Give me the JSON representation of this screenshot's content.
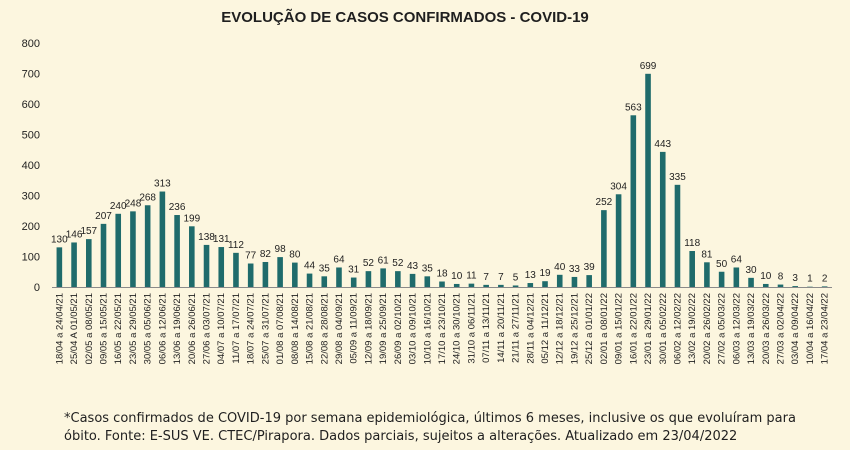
{
  "chart_data": {
    "type": "bar",
    "title": "EVOLUÇÃO DE CASOS CONFIRMADOS -  COVID-19",
    "xlabel": "",
    "ylabel": "",
    "ylim": [
      0,
      800
    ],
    "yticks": [
      0,
      100,
      200,
      300,
      400,
      500,
      600,
      700,
      800
    ],
    "grid": false,
    "legend": "none",
    "bar_color": "#1f6b6b",
    "categories": [
      "18/04 a 24/04/21",
      "25/04 A 01/05/21",
      "02/05 a 08/05/21",
      "09/05 a 15/05/21",
      "16/05 a 22/05/21",
      "23/05 a 29/05/21",
      "30/05 a 05/06/21",
      "06/06 a 12/06/21",
      "13/06 a 19/06/21",
      "20/06 a 26/06/21",
      "27/06 a 03/07/21",
      "04/07 a 10/07/21",
      "11/07 a 17/07/21",
      "18/07 a 24/07/21",
      "25/07 a 31/07/21",
      "01/08 a 07/08/21",
      "08/08 a 14/08/21",
      "15/08 a 21/08/21",
      "22/08 a 28/08/21",
      "29/08 a 04/09/21",
      "05/09 a 11/09/21",
      "12/09 a 18/09/21",
      "19/09 a 25/09/21",
      "26/09 a 02/10/21",
      "03/10 a 09/10/21",
      "10/10 a 16/10/21",
      "17/10 a 23/10/21",
      "24/10 a 30/10/21",
      "31/10 a 06/11/21",
      "07/11 a 13/11/21",
      "14/11 a 20/11/21",
      "21/11 a 27/11/21",
      "28/11 a 04/12/21",
      "05/12 a 11/12/21",
      "12/12 a 18/12/21",
      "19/12 a 25/12/21",
      "25/12 a 01/01/22",
      "02/01 a 08/01/22",
      "09/01 a 15/01/22",
      "16/01 a 22/01/22",
      "23/01 a 29/01/22",
      "30/01 a 05/02/22",
      "06/02 a 12/02/22",
      "13/02 a 19/02/22",
      "20/02 a 26/02/22",
      "27/02 a 05/03/22",
      "06/03 a 12/03/22",
      "13/03 a 19/03/22",
      "20/03 a 26/03/22",
      "27/03 a 02/04/22",
      "03/04 a 09/04/22",
      "10/04 a 16/04/22",
      "17/04 a 23/04/22"
    ],
    "values": [
      130,
      146,
      157,
      207,
      240,
      248,
      268,
      313,
      236,
      199,
      138,
      131,
      112,
      77,
      82,
      98,
      80,
      44,
      35,
      64,
      31,
      52,
      61,
      52,
      43,
      35,
      18,
      10,
      11,
      7,
      7,
      5,
      13,
      19,
      40,
      33,
      39,
      252,
      304,
      563,
      699,
      443,
      335,
      118,
      81,
      50,
      64,
      30,
      10,
      8,
      3,
      1,
      2
    ]
  },
  "footnote": {
    "line1": "*Casos confirmados de COVID-19 por semana epidemiológica, últimos 6 meses, inclusive os que evoluíram para",
    "line2": "óbito. Fonte: E-SUS VE. CTEC/Pirapora. Dados parciais, sujeitos a alterações. Atualizado em 23/04/2022"
  }
}
